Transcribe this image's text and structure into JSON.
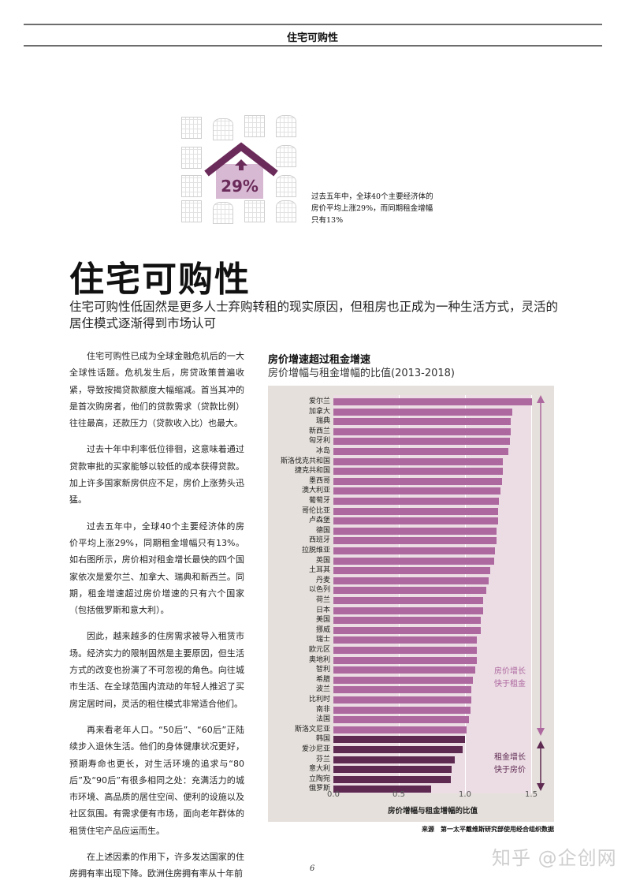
{
  "header": {
    "title": "住宅可购性"
  },
  "hero": {
    "stat": "29%",
    "caption": "过去五年中，全球40个主要经济体的房价平均上涨29%，而同期租金增幅只有13%",
    "accent_color": "#6b2b5a",
    "fill_color": "#d7b9d3"
  },
  "page": {
    "title": "住宅可购性",
    "subtitle": "住宅可购性低固然是更多人士弃购转租的现实原因，但租房也正成为一种生活方式，灵活的居住模式逐渐得到市场认可"
  },
  "body": {
    "paragraphs": [
      "住宅可购性已成为全球金融危机后的一大全球性话题。危机发生后，房贷政策普遍收紧，导致按揭贷款额度大幅缩减。首当其冲的是首次购房者，他们的贷款需求（贷款比例）往往最高，还款压力（贷款收入比）也最大。",
      "过去十年中利率低位徘徊，这意味着通过贷款审批的买家能够以较低的成本获得贷款。加上许多国家新房供应不足，房价上涨势头迅猛。",
      "过去五年中，全球40个主要经济体的房价平均上涨29%，同期租金增幅只有13%。如右图所示，房价相对租金增长最快的四个国家依次是爱尔兰、加拿大、瑞典和新西兰。同期，租金增速超过房价增速的只有六个国家（包括俄罗斯和意大利）。",
      "因此，越来越多的住房需求被导入租赁市场。经济实力的限制固然是主要原因，但生活方式的改变也扮演了不可忽视的角色。向往城市生活、在全球范围内流动的年轻人推迟了买房定居时间，灵活的租住模式非常适合他们。",
      "再来看老年人口。“50后”、“60后”正陆续步入退休生活。他们的身体健康状况更好，预期寿命也更长，对生活环境的追求与“80后”及“90后”有很多相同之处：充满活力的城市环境、高品质的居住空间、便利的设施以及社区氛围。有需求便有市场，面向老年群体的租赁住宅产品应运而生。",
      "在上述因素的作用下，许多发达国家的住房拥有率出现下降。欧洲住房拥有率从十年前"
    ]
  },
  "chart": {
    "title": "房价增速超过租金增速",
    "subtitle": "房价增幅与租金增幅的比值(2013-2018)",
    "note_up": "房价增长\n快于租金",
    "note_down": "租金增长\n快于房价",
    "source": "来源　第一太平戴维斯研究部使用经合组织数据",
    "colors": {
      "above": "#ad68a0",
      "below": "#5e2a52",
      "background": "#e5e0db",
      "plot": "#ecdde4"
    }
  },
  "chart_data": {
    "type": "bar",
    "orientation": "horizontal",
    "title": "房价增速超过租金增速",
    "subtitle": "房价增幅与租金增幅的比值(2013-2018)",
    "xlabel": "房价增幅与租金增幅的比值",
    "ylabel": "",
    "xlim": [
      0,
      1.5
    ],
    "xticks": [
      "0.0",
      "0.5",
      "1.0",
      "1.5"
    ],
    "grid": "vertical",
    "categories": [
      "爱尔兰",
      "加拿大",
      "瑞典",
      "新西兰",
      "匈牙利",
      "冰岛",
      "斯洛伐克共和国",
      "捷克共和国",
      "墨西哥",
      "澳大利亚",
      "葡萄牙",
      "哥伦比亚",
      "卢森堡",
      "德国",
      "西班牙",
      "拉脱维亚",
      "英国",
      "土耳其",
      "丹麦",
      "以色列",
      "荷兰",
      "日本",
      "美国",
      "挪威",
      "瑞士",
      "欧元区",
      "奥地利",
      "智利",
      "希腊",
      "波兰",
      "比利时",
      "南非",
      "法国",
      "斯洛文尼亚",
      "韩国",
      "爱沙尼亚",
      "芬兰",
      "意大利",
      "立陶宛",
      "俄罗斯"
    ],
    "values": [
      1.51,
      1.36,
      1.35,
      1.35,
      1.34,
      1.33,
      1.29,
      1.29,
      1.28,
      1.27,
      1.26,
      1.25,
      1.25,
      1.24,
      1.24,
      1.23,
      1.22,
      1.19,
      1.18,
      1.16,
      1.14,
      1.14,
      1.12,
      1.12,
      1.09,
      1.09,
      1.09,
      1.08,
      1.06,
      1.05,
      1.05,
      1.04,
      1.03,
      1.01,
      1.0,
      0.98,
      0.92,
      0.9,
      0.89,
      0.74
    ],
    "annotations": [
      {
        "text": "房价增长快于租金",
        "range": "ratio > 1"
      },
      {
        "text": "租金增长快于房价",
        "range": "ratio < 1"
      }
    ],
    "source": "来源　第一太平戴维斯研究部使用经合组织数据"
  },
  "footer": {
    "page_number": "6",
    "watermark": "知乎 @企创网"
  }
}
